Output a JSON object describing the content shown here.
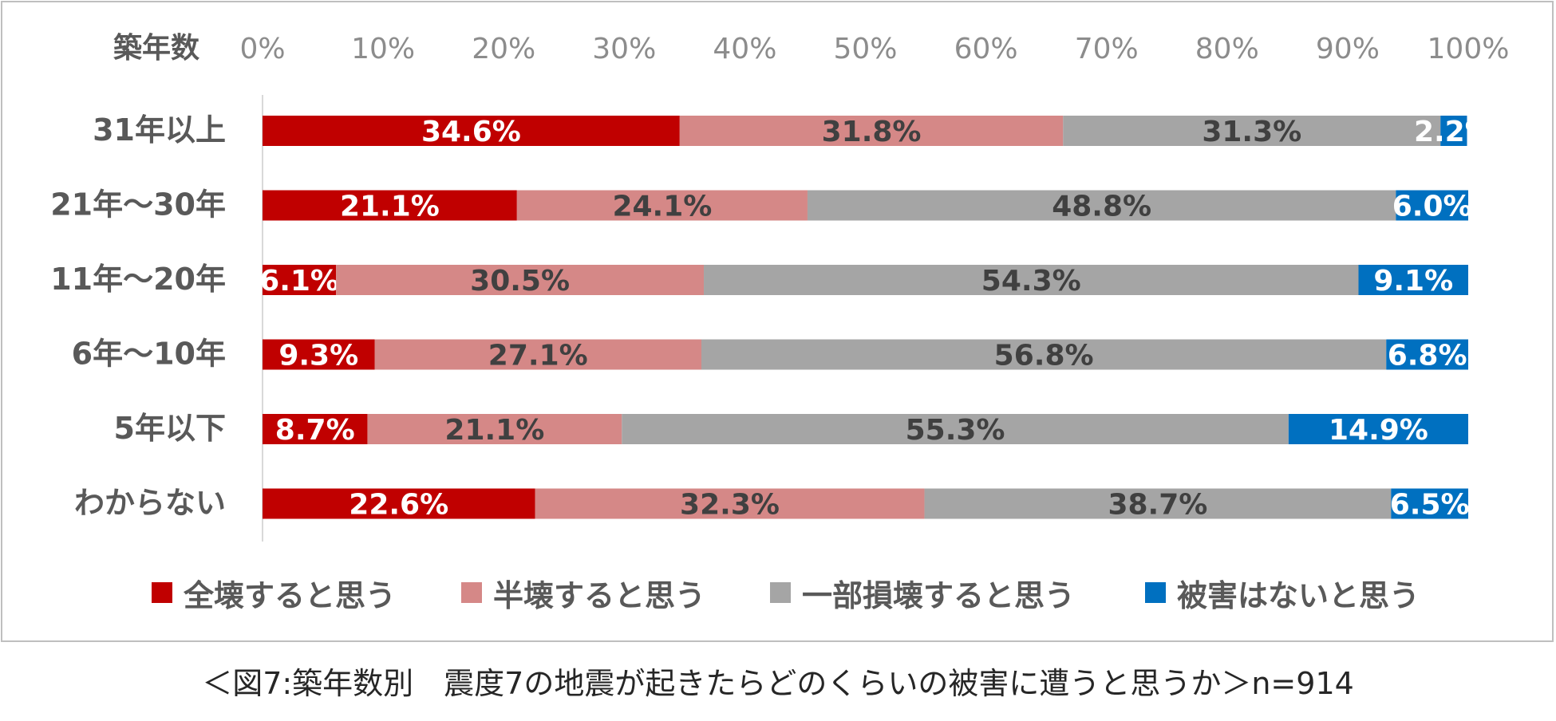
{
  "chart_data": {
    "type": "bar",
    "orientation": "horizontal",
    "stacked": true,
    "title": "",
    "y_header": "築年数",
    "xlim": [
      0,
      100
    ],
    "x_ticks": [
      "0%",
      "10%",
      "20%",
      "30%",
      "40%",
      "50%",
      "60%",
      "70%",
      "80%",
      "90%",
      "100%"
    ],
    "categories": [
      "31年以上",
      "21年～30年",
      "11年～20年",
      "6年～10年",
      "5年以下",
      "わからない"
    ],
    "series": [
      {
        "name": "全壊すると思う",
        "color": "#c00000",
        "label_color": "#ffffff",
        "values": [
          34.6,
          21.1,
          6.1,
          9.3,
          8.7,
          22.6
        ],
        "labels": [
          "34.6%",
          "21.1%",
          "6.1%",
          "9.3%",
          "8.7%",
          "22.6%"
        ]
      },
      {
        "name": "半壊すると思う",
        "color": "#d58887",
        "label_color": "#404040",
        "values": [
          31.8,
          24.1,
          30.5,
          27.1,
          21.1,
          32.3
        ],
        "labels": [
          "31.8%",
          "24.1%",
          "30.5%",
          "27.1%",
          "21.1%",
          "32.3%"
        ]
      },
      {
        "name": "一部損壊すると思う",
        "color": "#a5a5a5",
        "label_color": "#404040",
        "values": [
          31.3,
          48.8,
          54.3,
          56.8,
          55.3,
          38.7
        ],
        "labels": [
          "31.3%",
          "48.8%",
          "54.3%",
          "56.8%",
          "55.3%",
          "38.7%"
        ]
      },
      {
        "name": "被害はないと思う",
        "color": "#0070c0",
        "label_color": "#ffffff",
        "values": [
          2.2,
          6.0,
          9.1,
          6.8,
          14.9,
          6.5
        ],
        "labels": [
          "2.2%",
          "6.0%",
          "9.1%",
          "6.8%",
          "14.9%",
          "6.5%"
        ]
      }
    ],
    "legend_position": "bottom",
    "grid": false
  },
  "caption": "＜図7:築年数別　震度7の地震が起きたらどのくらいの被害に遭うと思うか＞n=914"
}
